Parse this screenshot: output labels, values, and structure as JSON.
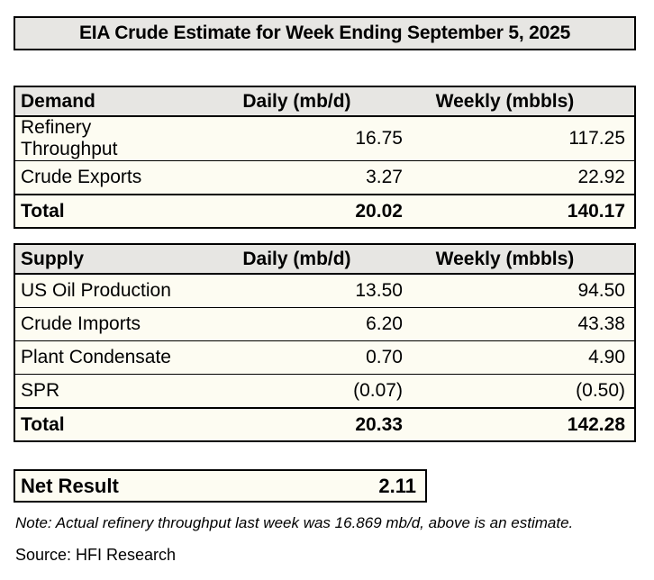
{
  "title": "EIA Crude Estimate for Week Ending September 5, 2025",
  "colors": {
    "header_bg": "#e7e6e3",
    "body_bg": "#fdfcf2",
    "border": "#000000",
    "page_bg": "#ffffff"
  },
  "demand_table": {
    "header": [
      "Demand",
      "Daily (mb/d)",
      "Weekly (mbbls)"
    ],
    "rows": [
      {
        "label": "Refinery Throughput",
        "daily": "16.75",
        "weekly": "117.25"
      },
      {
        "label": "Crude Exports",
        "daily": "3.27",
        "weekly": "22.92"
      }
    ],
    "total": {
      "label": "Total",
      "daily": "20.02",
      "weekly": "140.17"
    }
  },
  "supply_table": {
    "header": [
      "Supply",
      "Daily (mb/d)",
      "Weekly (mbbls)"
    ],
    "rows": [
      {
        "label": "US Oil Production",
        "daily": "13.50",
        "weekly": "94.50"
      },
      {
        "label": "Crude Imports",
        "daily": "6.20",
        "weekly": "43.38"
      },
      {
        "label": "Plant Condensate",
        "daily": "0.70",
        "weekly": "4.90"
      },
      {
        "label": "SPR",
        "daily": "(0.07)",
        "weekly": "(0.50)"
      }
    ],
    "total": {
      "label": "Total",
      "daily": "20.33",
      "weekly": "142.28"
    }
  },
  "net_result": {
    "label": "Net Result",
    "value": "2.11"
  },
  "note": "Note: Actual refinery throughput last week was 16.869 mb/d, above is an estimate.",
  "source": "Source: HFI Research"
}
